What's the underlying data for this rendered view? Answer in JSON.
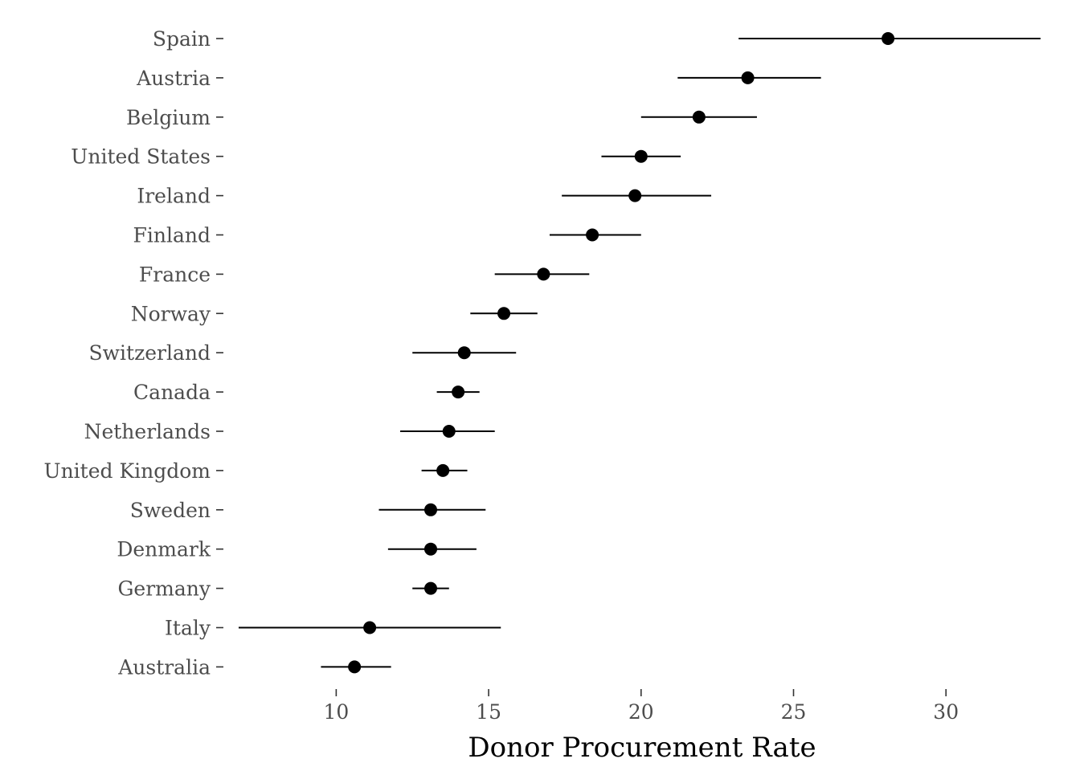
{
  "chart_data": {
    "type": "scatter",
    "subtype": "point-range",
    "title": "",
    "xlabel": "Donor Procurement Rate",
    "ylabel": "",
    "xlim": [
      6.3,
      33.5
    ],
    "x_ticks": [
      10,
      15,
      20,
      25,
      30
    ],
    "grid": false,
    "legend": "none",
    "point_color": "#000000",
    "categories": [
      "Spain",
      "Austria",
      "Belgium",
      "United States",
      "Ireland",
      "Finland",
      "France",
      "Norway",
      "Switzerland",
      "Canada",
      "Netherlands",
      "United Kingdom",
      "Sweden",
      "Denmark",
      "Germany",
      "Italy",
      "Australia"
    ],
    "points": [
      {
        "country": "Spain",
        "mean": 28.1,
        "low": 23.2,
        "high": 33.1
      },
      {
        "country": "Austria",
        "mean": 23.5,
        "low": 21.2,
        "high": 25.9
      },
      {
        "country": "Belgium",
        "mean": 21.9,
        "low": 20.0,
        "high": 23.8
      },
      {
        "country": "United States",
        "mean": 20.0,
        "low": 18.7,
        "high": 21.3
      },
      {
        "country": "Ireland",
        "mean": 19.8,
        "low": 17.4,
        "high": 22.3
      },
      {
        "country": "Finland",
        "mean": 18.4,
        "low": 17.0,
        "high": 20.0
      },
      {
        "country": "France",
        "mean": 16.8,
        "low": 15.2,
        "high": 18.3
      },
      {
        "country": "Norway",
        "mean": 15.5,
        "low": 14.4,
        "high": 16.6
      },
      {
        "country": "Switzerland",
        "mean": 14.2,
        "low": 12.5,
        "high": 15.9
      },
      {
        "country": "Canada",
        "mean": 14.0,
        "low": 13.3,
        "high": 14.7
      },
      {
        "country": "Netherlands",
        "mean": 13.7,
        "low": 12.1,
        "high": 15.2
      },
      {
        "country": "United Kingdom",
        "mean": 13.5,
        "low": 12.8,
        "high": 14.3
      },
      {
        "country": "Sweden",
        "mean": 13.1,
        "low": 11.4,
        "high": 14.9
      },
      {
        "country": "Denmark",
        "mean": 13.1,
        "low": 11.7,
        "high": 14.6
      },
      {
        "country": "Germany",
        "mean": 13.1,
        "low": 12.5,
        "high": 13.7
      },
      {
        "country": "Italy",
        "mean": 11.1,
        "low": 6.8,
        "high": 15.4
      },
      {
        "country": "Australia",
        "mean": 10.6,
        "low": 9.5,
        "high": 11.8
      }
    ]
  }
}
